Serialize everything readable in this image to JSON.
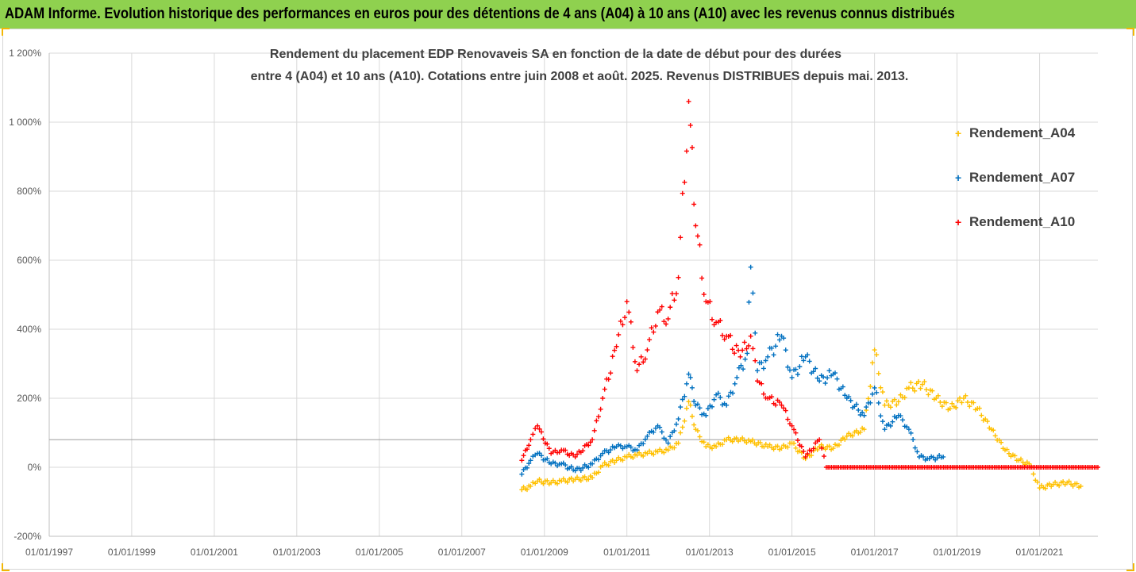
{
  "banner": {
    "title": "ADAM Informe. Evolution historique des performances en euros pour des détentions de 4 ans (A04) à 10 ans (A10) avec les revenus connus distribués"
  },
  "chart_data": {
    "type": "scatter",
    "title_line1": "Rendement du placement EDP Renovaveis SA en fonction de la date de début pour des durées",
    "title_line2": "entre 4 (A04) et 10 ans (A10). Cotations entre juin 2008 et août. 2025. Revenus DISTRIBUES depuis mai. 2013.",
    "xlabel": "",
    "ylabel": "",
    "x_range": [
      "1997-01-01",
      "2022-06-01"
    ],
    "x_ticks": [
      "01/01/1997",
      "01/01/1999",
      "01/01/2001",
      "01/01/2003",
      "01/01/2005",
      "01/01/2007",
      "01/01/2009",
      "01/01/2011",
      "01/01/2013",
      "01/01/2015",
      "01/01/2017",
      "01/01/2019",
      "01/01/2021"
    ],
    "ylim": [
      -200,
      1200
    ],
    "y_ticks": [
      -200,
      0,
      200,
      400,
      600,
      800,
      1000,
      1200
    ],
    "y_tick_labels": [
      "-200%",
      "0%",
      "200%",
      "400%",
      "600%",
      "800%",
      "1 000%",
      "1 200%"
    ],
    "reference_line_y": 80,
    "grid": "vertical and horizontal",
    "legend_position": "right",
    "series": [
      {
        "name": "Rendement_A04",
        "color": "#ffc000",
        "marker": "plus",
        "points": [
          [
            "2008-06-15",
            -65
          ],
          [
            "2008-09-01",
            -55
          ],
          [
            "2008-11-01",
            -40
          ],
          [
            "2009-03-01",
            -45
          ],
          [
            "2009-06-01",
            -40
          ],
          [
            "2009-10-01",
            -35
          ],
          [
            "2010-03-01",
            -30
          ],
          [
            "2010-06-01",
            5
          ],
          [
            "2010-10-01",
            20
          ],
          [
            "2011-01-01",
            30
          ],
          [
            "2011-04-01",
            35
          ],
          [
            "2011-07-01",
            40
          ],
          [
            "2011-10-01",
            45
          ],
          [
            "2012-01-01",
            50
          ],
          [
            "2012-04-01",
            70
          ],
          [
            "2012-07-01",
            190
          ],
          [
            "2012-09-01",
            110
          ],
          [
            "2012-12-01",
            60
          ],
          [
            "2013-03-01",
            60
          ],
          [
            "2013-06-01",
            80
          ],
          [
            "2013-10-01",
            80
          ],
          [
            "2014-01-01",
            75
          ],
          [
            "2014-06-01",
            60
          ],
          [
            "2014-10-01",
            55
          ],
          [
            "2015-01-01",
            70
          ],
          [
            "2015-05-01",
            25
          ],
          [
            "2015-09-01",
            60
          ],
          [
            "2016-01-01",
            55
          ],
          [
            "2016-05-01",
            90
          ],
          [
            "2016-10-01",
            110
          ],
          [
            "2017-01-01",
            340
          ],
          [
            "2017-04-01",
            180
          ],
          [
            "2017-08-01",
            190
          ],
          [
            "2017-11-01",
            230
          ],
          [
            "2018-03-01",
            240
          ],
          [
            "2018-07-01",
            200
          ],
          [
            "2018-11-01",
            170
          ],
          [
            "2019-03-01",
            200
          ],
          [
            "2019-07-01",
            170
          ],
          [
            "2019-11-01",
            110
          ],
          [
            "2020-03-01",
            50
          ],
          [
            "2020-07-01",
            20
          ],
          [
            "2020-10-01",
            10
          ],
          [
            "2021-01-01",
            -60
          ],
          [
            "2021-05-01",
            -50
          ],
          [
            "2021-09-01",
            -45
          ],
          [
            "2022-01-01",
            -55
          ]
        ]
      },
      {
        "name": "Rendement_A07",
        "color": "#0070c0",
        "marker": "plus",
        "points": [
          [
            "2008-06-15",
            -20
          ],
          [
            "2008-09-01",
            20
          ],
          [
            "2008-11-01",
            40
          ],
          [
            "2009-03-01",
            10
          ],
          [
            "2009-06-01",
            10
          ],
          [
            "2009-10-01",
            -10
          ],
          [
            "2010-03-01",
            10
          ],
          [
            "2010-06-01",
            40
          ],
          [
            "2010-10-01",
            60
          ],
          [
            "2011-01-01",
            60
          ],
          [
            "2011-04-01",
            50
          ],
          [
            "2011-07-01",
            90
          ],
          [
            "2011-10-01",
            120
          ],
          [
            "2012-01-01",
            70
          ],
          [
            "2012-04-01",
            140
          ],
          [
            "2012-07-01",
            270
          ],
          [
            "2012-09-01",
            180
          ],
          [
            "2012-12-01",
            150
          ],
          [
            "2013-03-01",
            210
          ],
          [
            "2013-06-01",
            180
          ],
          [
            "2013-09-01",
            260
          ],
          [
            "2013-12-01",
            330
          ],
          [
            "2014-01-01",
            580
          ],
          [
            "2014-03-01",
            280
          ],
          [
            "2014-06-01",
            320
          ],
          [
            "2014-10-01",
            380
          ],
          [
            "2015-01-01",
            260
          ],
          [
            "2015-05-01",
            320
          ],
          [
            "2015-09-01",
            250
          ],
          [
            "2016-01-01",
            270
          ],
          [
            "2016-05-01",
            200
          ],
          [
            "2016-10-01",
            150
          ],
          [
            "2017-01-01",
            230
          ],
          [
            "2017-04-01",
            110
          ],
          [
            "2017-08-01",
            150
          ],
          [
            "2017-11-01",
            110
          ],
          [
            "2018-02-01",
            30
          ],
          [
            "2018-05-01",
            25
          ],
          [
            "2018-09-01",
            30
          ]
        ]
      },
      {
        "name": "Rendement_A10",
        "color": "#ff0000",
        "marker": "plus",
        "points": [
          [
            "2008-06-15",
            20
          ],
          [
            "2008-09-01",
            80
          ],
          [
            "2008-11-01",
            120
          ],
          [
            "2009-03-01",
            40
          ],
          [
            "2009-06-01",
            50
          ],
          [
            "2009-10-01",
            30
          ],
          [
            "2010-03-01",
            80
          ],
          [
            "2010-06-01",
            200
          ],
          [
            "2010-10-01",
            350
          ],
          [
            "2011-01-01",
            480
          ],
          [
            "2011-04-01",
            280
          ],
          [
            "2011-07-01",
            340
          ],
          [
            "2011-10-01",
            450
          ],
          [
            "2012-01-01",
            430
          ],
          [
            "2012-04-01",
            550
          ],
          [
            "2012-07-01",
            1060
          ],
          [
            "2012-09-01",
            700
          ],
          [
            "2012-12-01",
            480
          ],
          [
            "2013-03-01",
            420
          ],
          [
            "2013-06-01",
            380
          ],
          [
            "2013-10-01",
            320
          ],
          [
            "2014-01-01",
            380
          ],
          [
            "2014-03-01",
            250
          ],
          [
            "2014-06-01",
            200
          ],
          [
            "2014-10-01",
            180
          ],
          [
            "2015-01-01",
            120
          ],
          [
            "2015-05-01",
            30
          ],
          [
            "2015-09-01",
            80
          ],
          [
            "2015-11-01",
            0
          ],
          [
            "2022-06-01",
            0
          ]
        ]
      }
    ]
  }
}
